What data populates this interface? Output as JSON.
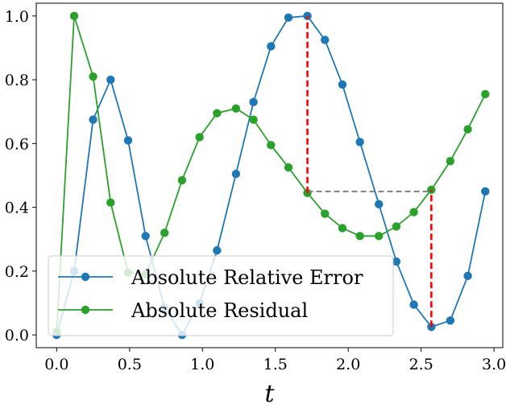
{
  "chart_data": {
    "type": "line",
    "xlabel": "t",
    "ylabel": "",
    "xlim": [
      -0.14,
      3.06
    ],
    "ylim": [
      -0.04,
      1.04
    ],
    "xticks": [
      0.0,
      0.5,
      1.0,
      1.5,
      2.0,
      2.5,
      3.0
    ],
    "xtick_labels": [
      "0.0",
      "0.5",
      "1.0",
      "1.5",
      "2.0",
      "2.5",
      "3.0"
    ],
    "yticks": [
      0.0,
      0.2,
      0.4,
      0.6,
      0.8,
      1.0
    ],
    "ytick_labels": [
      "0.0",
      "0.2",
      "0.4",
      "0.6",
      "0.8",
      "1.0"
    ],
    "legend_position": "lower-left",
    "series": [
      {
        "name": "Absolute Relative Error",
        "color": "#1f77b4",
        "x": [
          0.0,
          0.12,
          0.25,
          0.37,
          0.49,
          0.61,
          0.74,
          0.86,
          0.98,
          1.1,
          1.23,
          1.35,
          1.47,
          1.59,
          1.72,
          1.84,
          1.96,
          2.08,
          2.21,
          2.33,
          2.45,
          2.57,
          2.7,
          2.82,
          2.94
        ],
        "y": [
          0.0,
          0.2,
          0.675,
          0.8,
          0.61,
          0.31,
          0.085,
          0.0,
          0.1,
          0.265,
          0.505,
          0.73,
          0.905,
          0.995,
          1.0,
          0.925,
          0.785,
          0.605,
          0.41,
          0.23,
          0.095,
          0.025,
          0.045,
          0.185,
          0.45
        ]
      },
      {
        "name": "Absolute Residual",
        "color": "#2ca02c",
        "x": [
          0.0,
          0.12,
          0.25,
          0.37,
          0.49,
          0.61,
          0.74,
          0.86,
          0.98,
          1.1,
          1.23,
          1.35,
          1.47,
          1.59,
          1.72,
          1.84,
          1.96,
          2.08,
          2.21,
          2.33,
          2.45,
          2.57,
          2.7,
          2.82,
          2.94
        ],
        "y": [
          0.01,
          1.0,
          0.81,
          0.415,
          0.195,
          0.19,
          0.32,
          0.485,
          0.62,
          0.695,
          0.71,
          0.675,
          0.595,
          0.525,
          0.445,
          0.38,
          0.335,
          0.31,
          0.31,
          0.34,
          0.385,
          0.455,
          0.545,
          0.645,
          0.755
        ]
      }
    ],
    "annotations": {
      "red_dashed_verticals": [
        {
          "x": 1.72,
          "y_from": 0.445,
          "y_to": 1.0
        },
        {
          "x": 2.57,
          "y_from": 0.025,
          "y_to": 0.455
        }
      ],
      "gray_dashed_horizontal": {
        "y": 0.45,
        "x_from": 1.72,
        "x_to": 2.57
      },
      "red_color": "#ff0000",
      "gray_color": "#808080"
    }
  }
}
